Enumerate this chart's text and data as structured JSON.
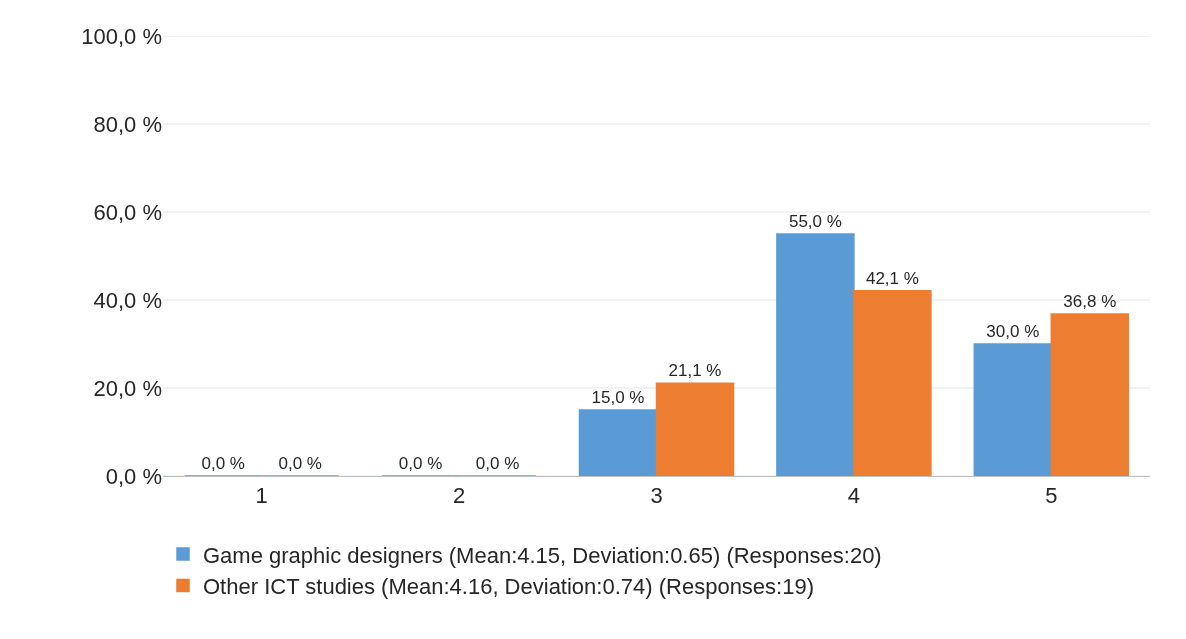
{
  "chart_data": {
    "type": "bar",
    "categories": [
      "1",
      "2",
      "3",
      "4",
      "5"
    ],
    "series": [
      {
        "name": "Game graphic designers (Mean:4.15, Deviation:0.65) (Responses:20)",
        "color": "#5b9bd5",
        "values": [
          0,
          0,
          15,
          55,
          30
        ],
        "value_labels": [
          "0,0 %",
          "0,0 %",
          "15,0 %",
          "55,0 %",
          "30,0 %"
        ]
      },
      {
        "name": "Other ICT studies (Mean:4.16, Deviation:0.74) (Responses:19)",
        "color": "#ed7d31",
        "values": [
          0,
          0,
          21.1,
          42.1,
          36.8
        ],
        "value_labels": [
          "0,0 %",
          "0,0 %",
          "21,1 %",
          "42,1 %",
          "36,8 %"
        ]
      }
    ],
    "ylim": [
      0,
      100
    ],
    "yticks": [
      {
        "value": 0,
        "label": "0,0 %"
      },
      {
        "value": 20,
        "label": "20,0 %"
      },
      {
        "value": 40,
        "label": "40,0 %"
      },
      {
        "value": 60,
        "label": "60,0 %"
      },
      {
        "value": 80,
        "label": "80,0 %"
      },
      {
        "value": 100,
        "label": "100,0 %"
      }
    ],
    "grid": "y",
    "legend": "bottom left"
  }
}
